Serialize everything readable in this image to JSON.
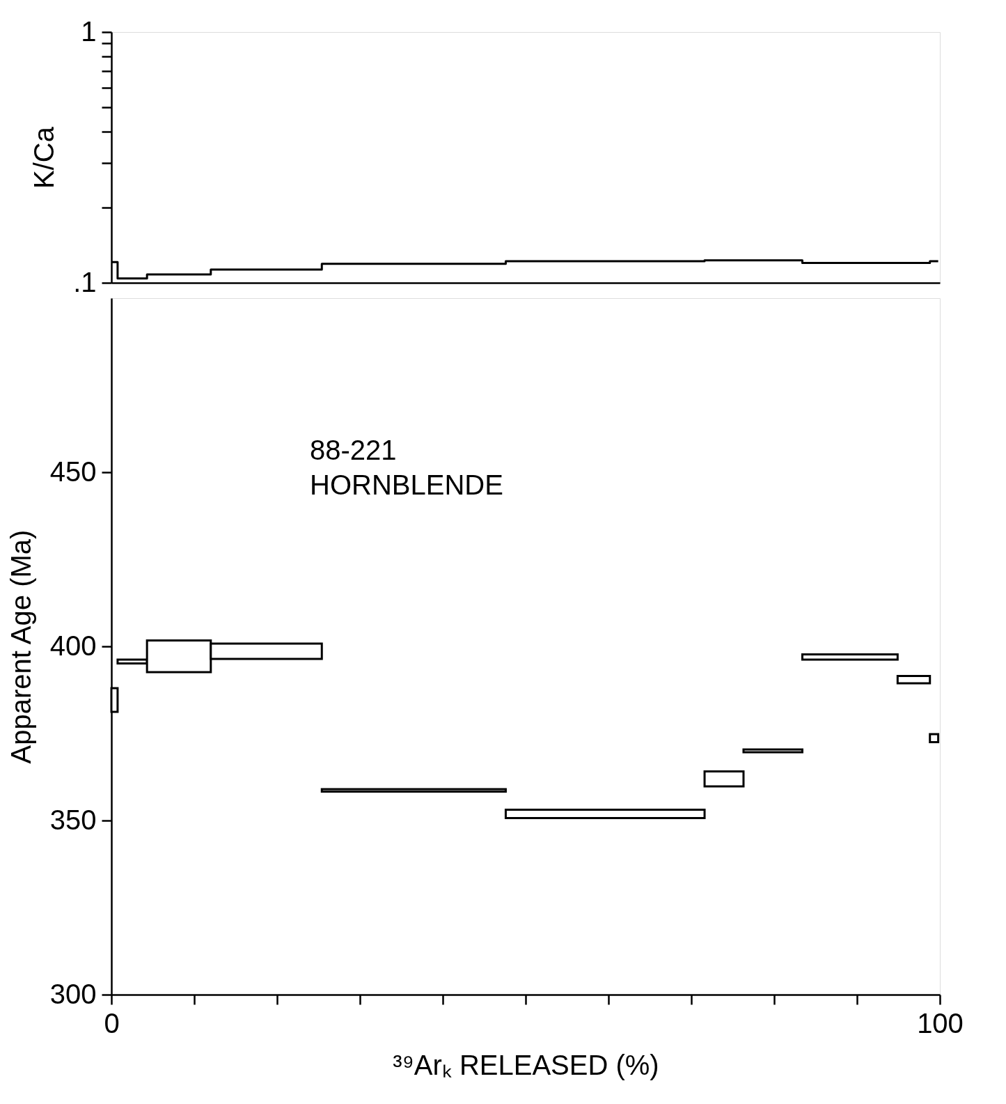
{
  "chart_data": [
    {
      "type": "step",
      "ylabel": "K/Ca",
      "log": "y",
      "tick_labels": "y",
      "grid": false,
      "xlim": [
        0,
        100
      ],
      "ylim": [
        0.1,
        1
      ],
      "yticks": [
        {
          "value": 0.1,
          "label": ".1"
        },
        {
          "value": 0.2,
          "label": null
        },
        {
          "value": 0.3,
          "label": null
        },
        {
          "value": 0.4,
          "label": null
        },
        {
          "value": 0.5,
          "label": null
        },
        {
          "value": 0.6,
          "label": null
        },
        {
          "value": 0.7,
          "label": null
        },
        {
          "value": 0.8,
          "label": null
        },
        {
          "value": 0.9,
          "label": null
        },
        {
          "value": 1,
          "label": "1"
        }
      ],
      "series": [
        {
          "color": "#000000",
          "x": [
            0,
            0.75,
            4.3,
            12.0,
            25.4,
            47.6,
            71.6,
            83.4,
            94.9,
            98.8,
            99.8
          ],
          "values": [
            0.121,
            0.104,
            0.108,
            0.113,
            0.119,
            0.122,
            0.123,
            0.12,
            0.12,
            0.122,
            0.122
          ]
        }
      ]
    },
    {
      "xlabel": "³⁹Arₖ RELEASED (%)",
      "ylabel": "Apparent Age (Ma)",
      "grid": false,
      "xlim": [
        0,
        100
      ],
      "ylim": [
        300,
        500
      ],
      "xticks": [
        0,
        {
          "value": 10,
          "label": null
        },
        {
          "value": 20,
          "label": null
        },
        {
          "value": 30,
          "label": null
        },
        {
          "value": 40,
          "label": null
        },
        {
          "value": 50,
          "label": null
        },
        {
          "value": 60,
          "label": null
        },
        {
          "value": 70,
          "label": null
        },
        {
          "value": 80,
          "label": null
        },
        {
          "value": 90,
          "label": null
        },
        100
      ],
      "yticks": [
        300,
        350,
        400,
        450
      ],
      "annotations": [
        "88-221",
        "HORNBLENDE"
      ],
      "type": "bar",
      "series": [
        {
          "color": "#000000",
          "x": [
            0.375,
            2.525,
            8.15,
            18.7,
            36.5,
            59.6,
            73.95,
            79.85,
            89.15,
            96.85,
            99.3
          ],
          "base": [
            381.2,
            395.1,
            392.6,
            396.4,
            358.3,
            350.7,
            359.8,
            369.6,
            396.2,
            389.4,
            372.5
          ],
          "values": [
            6.8,
            1.1,
            9.1,
            4.4,
            0.7,
            2.4,
            4.3,
            0.8,
            1.5,
            2.1,
            2.3
          ]
        }
      ]
    }
  ]
}
